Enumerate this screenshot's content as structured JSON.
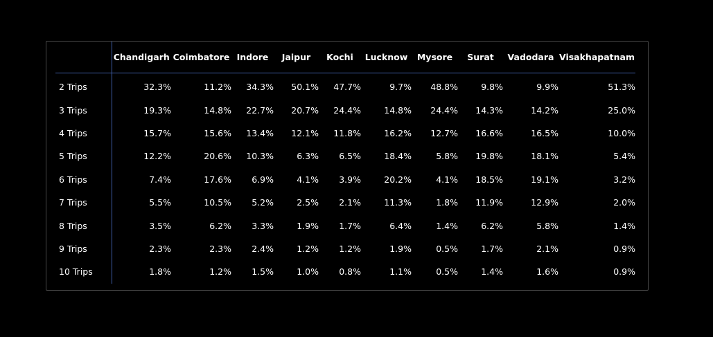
{
  "chart_data": {
    "type": "table",
    "row_header": "",
    "columns": [
      "Chandigarh",
      "Coimbatore",
      "Indore",
      "Jaipur",
      "Kochi",
      "Lucknow",
      "Mysore",
      "Surat",
      "Vadodara",
      "Visakhapatnam"
    ],
    "rows": [
      {
        "label": "2 Trips",
        "values": [
          "32.3%",
          "11.2%",
          "34.3%",
          "50.1%",
          "47.7%",
          "9.7%",
          "48.8%",
          "9.8%",
          "9.9%",
          "51.3%"
        ]
      },
      {
        "label": "3 Trips",
        "values": [
          "19.3%",
          "14.8%",
          "22.7%",
          "20.7%",
          "24.4%",
          "14.8%",
          "24.4%",
          "14.3%",
          "14.2%",
          "25.0%"
        ]
      },
      {
        "label": "4 Trips",
        "values": [
          "15.7%",
          "15.6%",
          "13.4%",
          "12.1%",
          "11.8%",
          "16.2%",
          "12.7%",
          "16.6%",
          "16.5%",
          "10.0%"
        ]
      },
      {
        "label": "5 Trips",
        "values": [
          "12.2%",
          "20.6%",
          "10.3%",
          "6.3%",
          "6.5%",
          "18.4%",
          "5.8%",
          "19.8%",
          "18.1%",
          "5.4%"
        ]
      },
      {
        "label": "6 Trips",
        "values": [
          "7.4%",
          "17.6%",
          "6.9%",
          "4.1%",
          "3.9%",
          "20.2%",
          "4.1%",
          "18.5%",
          "19.1%",
          "3.2%"
        ]
      },
      {
        "label": "7 Trips",
        "values": [
          "5.5%",
          "10.5%",
          "5.2%",
          "2.5%",
          "2.1%",
          "11.3%",
          "1.8%",
          "11.9%",
          "12.9%",
          "2.0%"
        ]
      },
      {
        "label": "8 Trips",
        "values": [
          "3.5%",
          "6.2%",
          "3.3%",
          "1.9%",
          "1.7%",
          "6.4%",
          "1.4%",
          "6.2%",
          "5.8%",
          "1.4%"
        ]
      },
      {
        "label": "9 Trips",
        "values": [
          "2.3%",
          "2.3%",
          "2.4%",
          "1.2%",
          "1.2%",
          "1.9%",
          "0.5%",
          "1.7%",
          "2.1%",
          "0.9%"
        ]
      },
      {
        "label": "10 Trips",
        "values": [
          "1.8%",
          "1.2%",
          "1.5%",
          "1.0%",
          "0.8%",
          "1.1%",
          "0.5%",
          "1.4%",
          "1.6%",
          "0.9%"
        ]
      }
    ]
  },
  "colors": {
    "background": "#000000",
    "text": "#ffffff",
    "frame_border": "#4a4a4a",
    "divider": "#3e5ea8"
  }
}
